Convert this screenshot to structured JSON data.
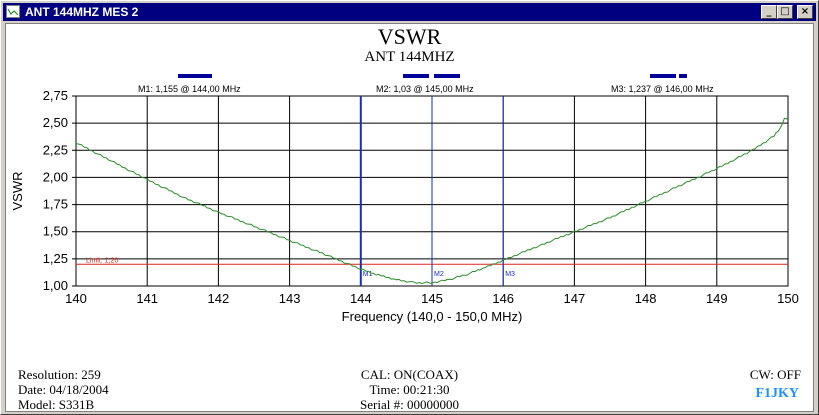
{
  "window": {
    "title": "ANT 144MHZ MES 2",
    "minimize_glyph": "_",
    "maximize_glyph": "□",
    "close_glyph": "×",
    "icon": "chart-app-icon"
  },
  "header": {
    "title": "VSWR",
    "subtitle": "ANT 144MHZ"
  },
  "markers": [
    {
      "label": "M1: 1,155  @ 144,00 MHz",
      "tag": "M1"
    },
    {
      "label": "M2: 1,03  @ 145,00 MHz",
      "tag": "M2"
    },
    {
      "label": "M3: 1,237  @ 146,00 MHz",
      "tag": "M3"
    }
  ],
  "limit_label": "Limit: 1,20",
  "footer": {
    "resolution": "Resolution:  259",
    "date": "Date: 04/18/2004",
    "model": "Model:  S331B",
    "cal": "CAL: ON(COAX)",
    "time": "Time:  00:21:30",
    "serial": "Serial #:  00000000",
    "cw": "CW: OFF",
    "callsign": "F1JKY"
  },
  "colors": {
    "title_bar": "#000080",
    "trace": "#2e8b2e",
    "marker_line": "#1a2fb5",
    "marker_bar": "#000099",
    "limit_line": "#d9261c",
    "callsign": "#1e90ff"
  },
  "chart_data": {
    "type": "line",
    "title": "VSWR",
    "subtitle": "ANT 144MHZ",
    "xlabel": "Frequency (140,0 - 150,0 MHz)",
    "ylabel": "VSWR",
    "xlim": [
      140,
      150
    ],
    "ylim": [
      1.0,
      2.75
    ],
    "x_ticks": [
      "140",
      "141",
      "142",
      "143",
      "144",
      "145",
      "146",
      "147",
      "148",
      "149",
      "150"
    ],
    "y_ticks": [
      "1,00",
      "1,25",
      "1,50",
      "1,75",
      "2,00",
      "2,25",
      "2,50",
      "2,75"
    ],
    "grid": true,
    "limit": 1.2,
    "markers": [
      {
        "name": "M1",
        "x": 144.0,
        "y": 1.155
      },
      {
        "name": "M2",
        "x": 145.0,
        "y": 1.03
      },
      {
        "name": "M3",
        "x": 146.0,
        "y": 1.237
      }
    ],
    "series": [
      {
        "x": [
          140.0,
          140.5,
          141.0,
          141.5,
          142.0,
          142.5,
          143.0,
          143.5,
          144.0,
          144.25,
          144.5,
          144.75,
          145.0,
          145.25,
          145.5,
          145.75,
          146.0,
          146.5,
          147.0,
          147.5,
          148.0,
          148.5,
          149.0,
          149.5,
          149.8,
          149.9,
          149.95,
          150.0
        ],
        "y": [
          2.32,
          2.15,
          1.98,
          1.82,
          1.68,
          1.55,
          1.42,
          1.29,
          1.155,
          1.1,
          1.06,
          1.03,
          1.03,
          1.06,
          1.11,
          1.17,
          1.237,
          1.37,
          1.5,
          1.63,
          1.78,
          1.93,
          2.08,
          2.25,
          2.38,
          2.46,
          2.55,
          2.53
        ]
      }
    ]
  }
}
